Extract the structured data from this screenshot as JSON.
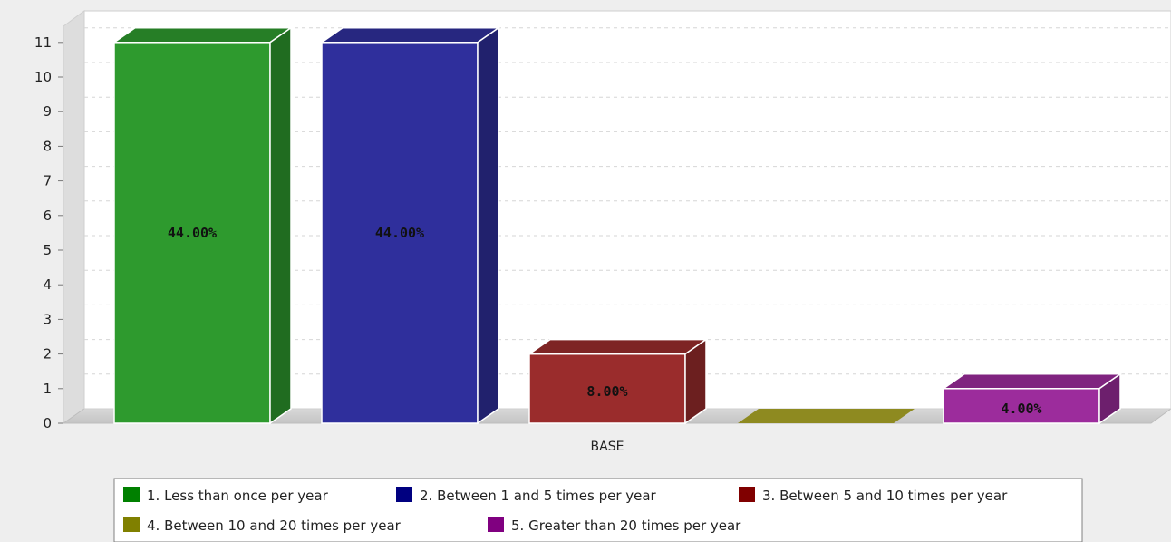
{
  "chart_data": {
    "type": "bar",
    "categories": [
      "BASE"
    ],
    "series": [
      {
        "name": "1. Less than once per year",
        "value": 11,
        "label": "44.00%",
        "color": "#2e9a2e"
      },
      {
        "name": "2. Between 1 and 5 times per year",
        "value": 11,
        "label": "44.00%",
        "color": "#2f2f9c"
      },
      {
        "name": "3. Between 5 and 10 times per year",
        "value": 2,
        "label": "8.00%",
        "color": "#9a2c2c"
      },
      {
        "name": "4. Between 10 and 20 times per year",
        "value": 0,
        "label": "",
        "color": "#8e8a20"
      },
      {
        "name": "5. Greater than 20 times per year",
        "value": 1,
        "label": "4.00%",
        "color": "#9c2c9c"
      }
    ],
    "yticks": [
      0,
      1,
      2,
      3,
      4,
      5,
      6,
      7,
      8,
      9,
      10,
      11
    ],
    "ylim": [
      0,
      12
    ],
    "grid": true,
    "legend_position": "bottom",
    "legend_swatch_colors": [
      "#008000",
      "#000080",
      "#800000",
      "#808000",
      "#800080"
    ]
  }
}
